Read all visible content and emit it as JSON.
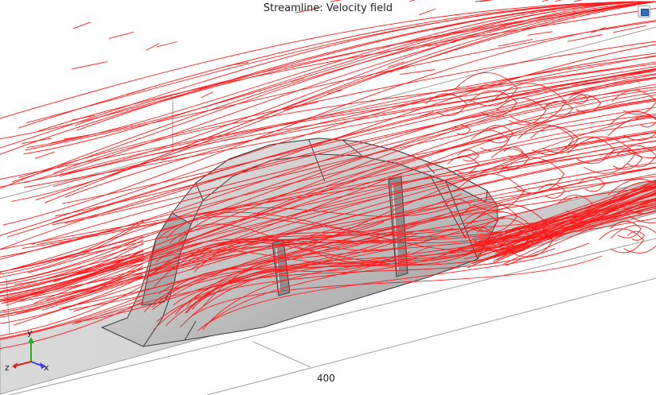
{
  "plot": {
    "title": "Streamline: Velocity field",
    "scale_label": "400"
  },
  "axes": {
    "x_label": "x",
    "y_label": "y",
    "z_label": "z",
    "x_color": "#3a3adf",
    "y_color": "#1fae1f",
    "z_color": "#d62020"
  },
  "colors": {
    "streamline": "#ff1a1a",
    "body": "#bdbdbd",
    "ground": "#d4d4d4",
    "edge": "#3a3a3a"
  },
  "icons": {
    "corner_button": "expand-icon"
  }
}
